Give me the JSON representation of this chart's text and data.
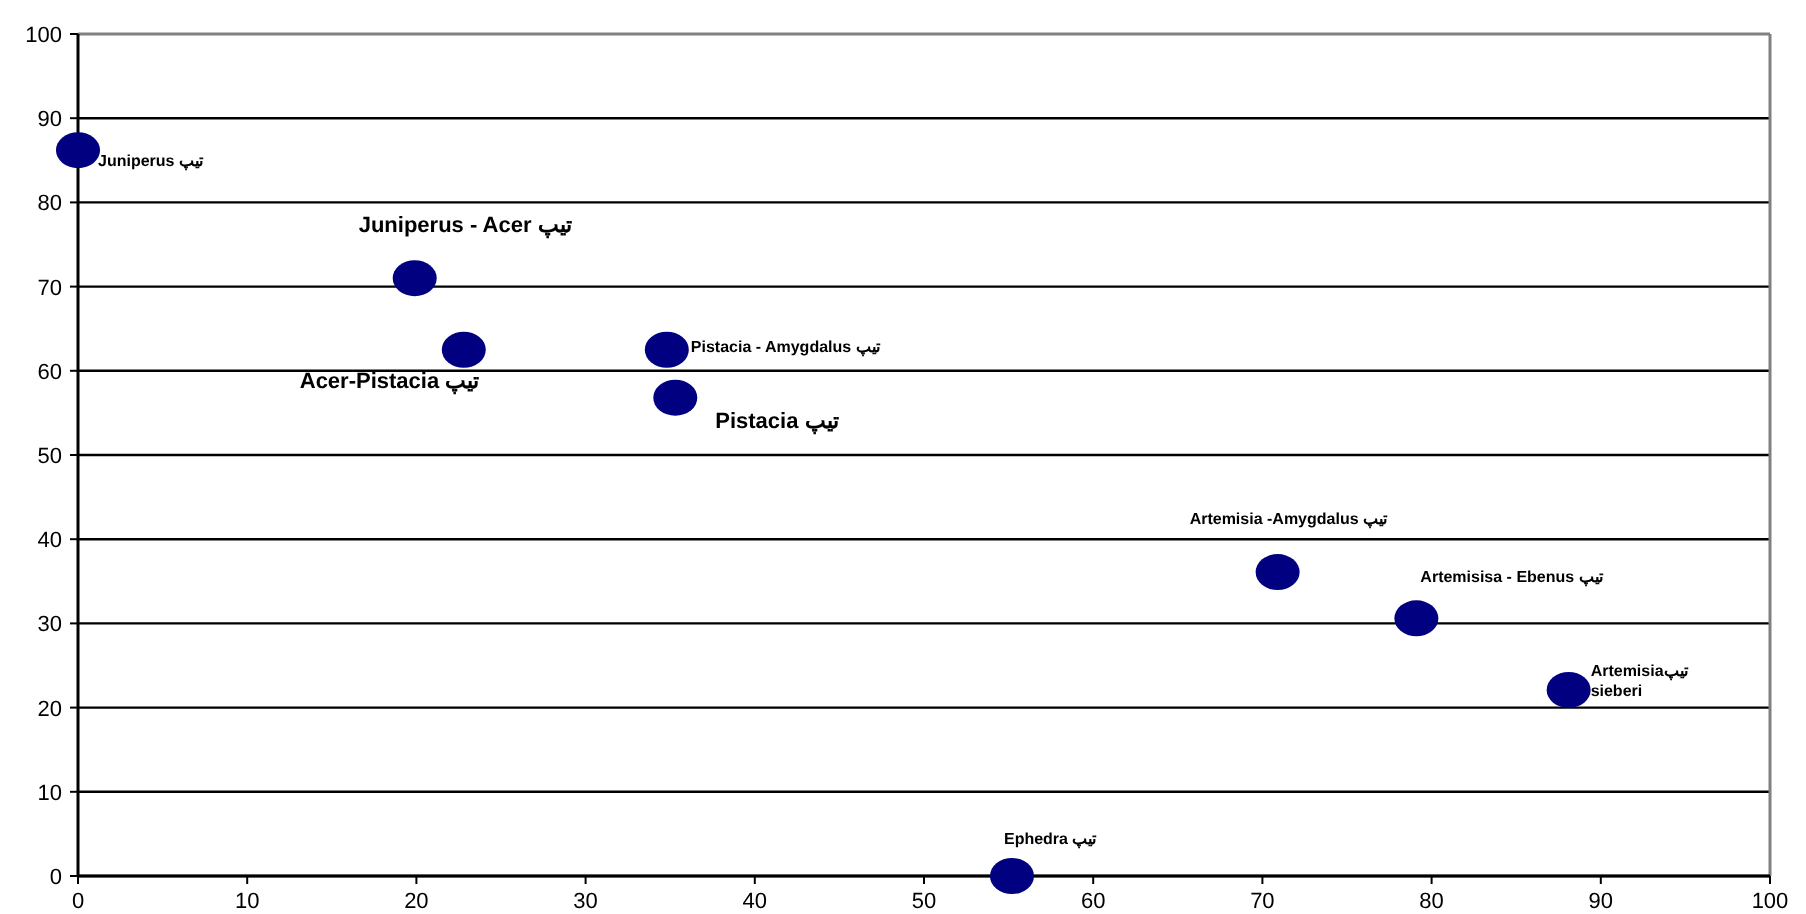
{
  "chart_data": {
    "type": "scatter",
    "xlim": [
      0,
      100
    ],
    "ylim": [
      0,
      100
    ],
    "xticks": [
      0,
      10,
      20,
      30,
      40,
      50,
      60,
      70,
      80,
      90,
      100
    ],
    "yticks": [
      0,
      10,
      20,
      30,
      40,
      50,
      60,
      70,
      80,
      90,
      100
    ],
    "grid": "y",
    "marker": "circle",
    "series": [
      {
        "color": "#000080",
        "x": [
          0,
          19.9,
          22.8,
          34.8,
          35.3,
          70.9,
          79.1,
          88.1,
          55.2
        ],
        "values": [
          86.2,
          71.0,
          62.5,
          62.5,
          56.8,
          36.1,
          30.6,
          22.1,
          0
        ]
      }
    ],
    "annotations": [
      {
        "text": "Juniperus تیپ",
        "x": 0,
        "y": 86.2
      },
      {
        "text": "Juniperus - Acer تیپ",
        "x": 19.9,
        "y": 71.0
      },
      {
        "text": "Acer-Pistacia تیپ",
        "x": 22.8,
        "y": 62.5
      },
      {
        "text": "Pistacia - Amygdalus تیپ",
        "x": 34.8,
        "y": 62.5
      },
      {
        "text": "Pistacia تیپ",
        "x": 35.3,
        "y": 56.8
      },
      {
        "text": "Artemisia -Amygdalus تیپ",
        "x": 70.9,
        "y": 36.1
      },
      {
        "text": "Artemisisa - Ebenus تیپ",
        "x": 79.1,
        "y": 30.6
      },
      {
        "text": "Artemisiaتیپ\nsieberi",
        "x": 88.1,
        "y": 22.1
      },
      {
        "text": "Ephedra تیپ",
        "x": 55.2,
        "y": 0
      }
    ]
  }
}
